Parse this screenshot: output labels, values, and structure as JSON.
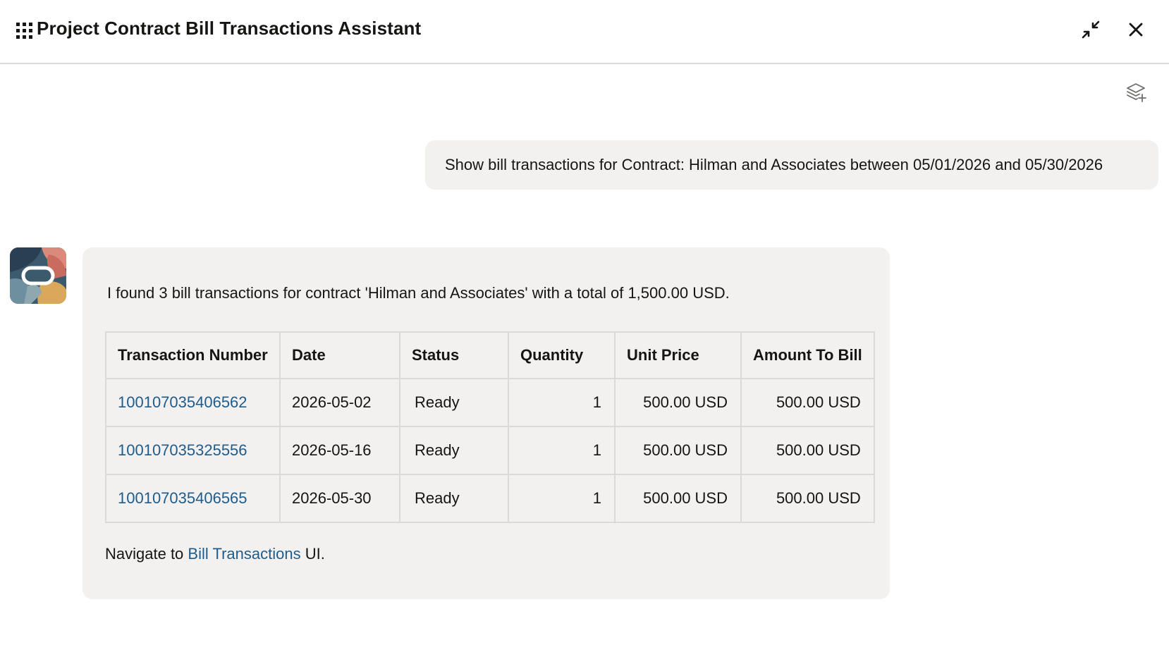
{
  "header": {
    "title": "Project Contract Bill Transactions Assistant",
    "menu_icon": "grid-menu-icon",
    "collapse_icon": "collapse-icon",
    "close_icon": "close-icon"
  },
  "toolbar": {
    "new_conversation_icon": "layers-plus-icon"
  },
  "conversation": {
    "user_message": "Show bill transactions for Contract: Hilman and Associates between 05/01/2026 and 05/30/2026",
    "assistant": {
      "intro": "I found 3 bill transactions for contract 'Hilman and Associates' with a total of 1,500.00 USD.",
      "table": {
        "columns": [
          "Transaction Number",
          "Date",
          "Status",
          "Quantity",
          "Unit Price",
          "Amount To Bill"
        ],
        "rows": [
          {
            "transaction_number": "100107035406562",
            "date": "2026-05-02",
            "status": "Ready",
            "quantity": "1",
            "unit_price": "500.00 USD",
            "amount_to_bill": "500.00 USD"
          },
          {
            "transaction_number": "100107035325556",
            "date": "2026-05-16",
            "status": "Ready",
            "quantity": "1",
            "unit_price": "500.00 USD",
            "amount_to_bill": "500.00 USD"
          },
          {
            "transaction_number": "100107035406565",
            "date": "2026-05-30",
            "status": "Ready",
            "quantity": "1",
            "unit_price": "500.00 USD",
            "amount_to_bill": "500.00 USD"
          }
        ]
      },
      "nav_prefix": "Navigate to ",
      "nav_link": "Bill Transactions",
      "nav_suffix": " UI."
    }
  },
  "colors": {
    "link": "#1f5c8c",
    "bubble_bg": "#f2f1f0",
    "border": "#dcdad7",
    "text": "#161513"
  }
}
